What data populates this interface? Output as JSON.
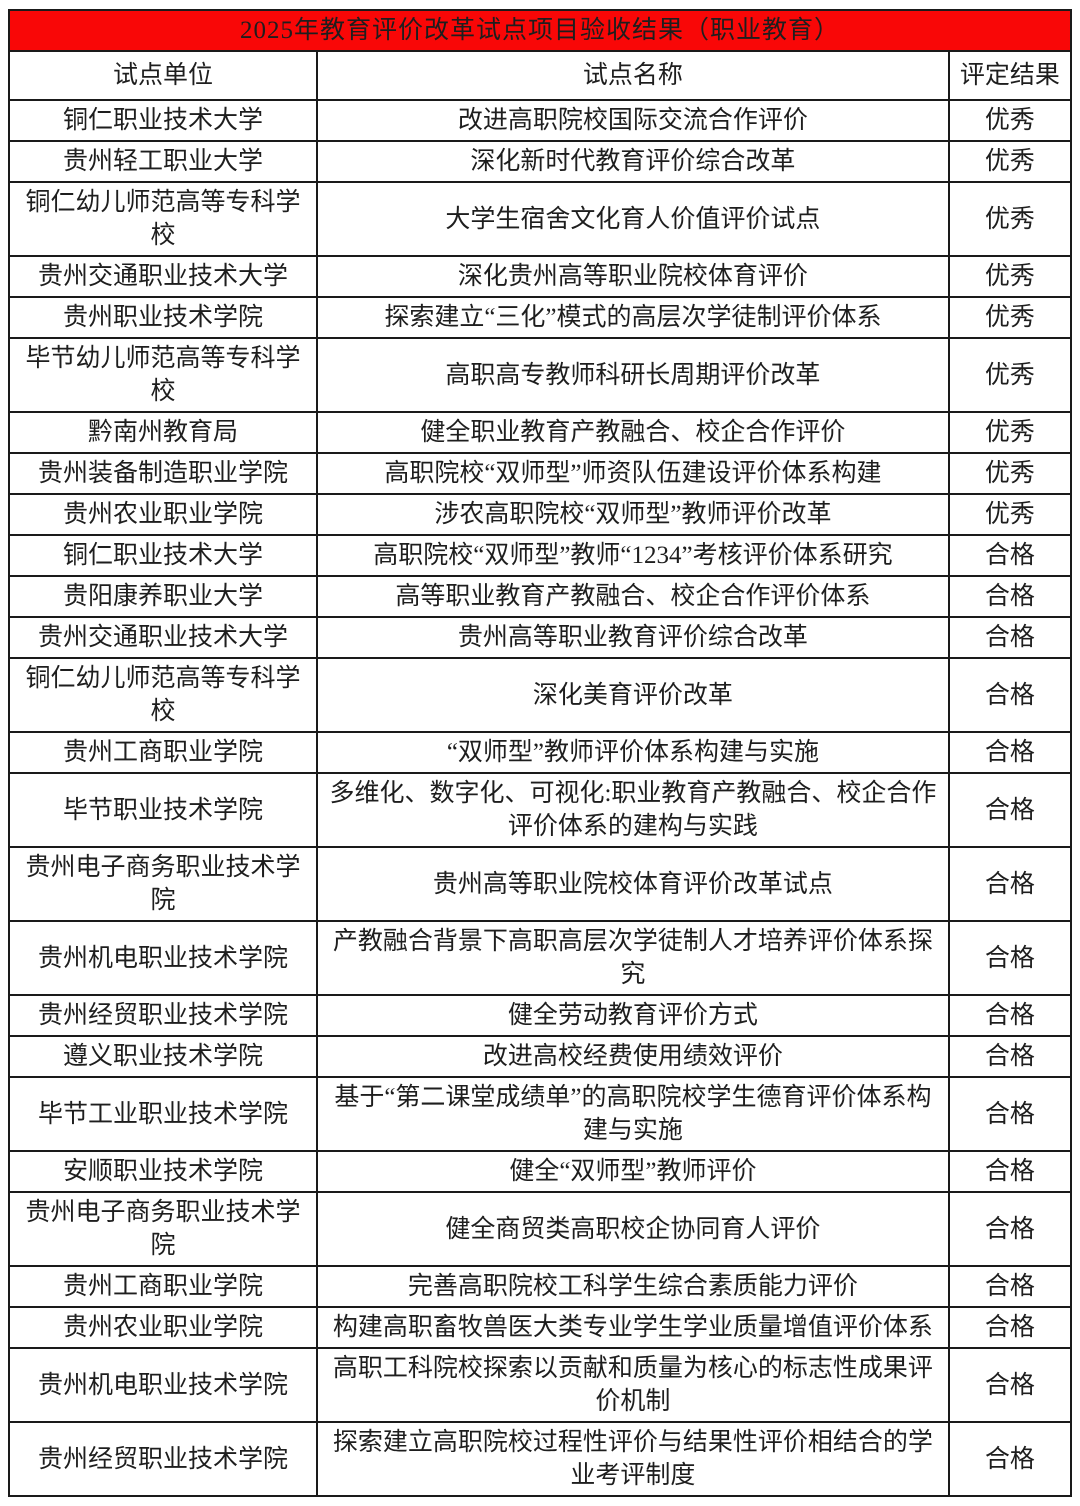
{
  "title": "2025年教育评价改革试点项目验收结果（职业教育）",
  "columns": [
    "试点单位",
    "试点名称",
    "评定结果"
  ],
  "colors": {
    "title_bg": "#f90707",
    "title_text": "#ffffff",
    "border": "#1a1a1a",
    "body_text": "#1e1e1e"
  },
  "rows": [
    {
      "unit": "铜仁职业技术大学",
      "project": "改进高职院校国际交流合作评价",
      "result": "优秀"
    },
    {
      "unit": "贵州轻工职业大学",
      "project": "深化新时代教育评价综合改革",
      "result": "优秀"
    },
    {
      "unit": "铜仁幼儿师范高等专科学校",
      "project": "大学生宿舍文化育人价值评价试点",
      "result": "优秀"
    },
    {
      "unit": "贵州交通职业技术大学",
      "project": "深化贵州高等职业院校体育评价",
      "result": "优秀"
    },
    {
      "unit": "贵州职业技术学院",
      "project": "探索建立“三化”模式的高层次学徒制评价体系",
      "result": "优秀"
    },
    {
      "unit": "毕节幼儿师范高等专科学校",
      "project": "高职高专教师科研长周期评价改革",
      "result": "优秀"
    },
    {
      "unit": "黔南州教育局",
      "project": "健全职业教育产教融合、校企合作评价",
      "result": "优秀"
    },
    {
      "unit": "贵州装备制造职业学院",
      "project": "高职院校“双师型”师资队伍建设评价体系构建",
      "result": "优秀"
    },
    {
      "unit": "贵州农业职业学院",
      "project": "涉农高职院校“双师型”教师评价改革",
      "result": "优秀"
    },
    {
      "unit": "铜仁职业技术大学",
      "project": "高职院校“双师型”教师“1234”考核评价体系研究",
      "result": "合格"
    },
    {
      "unit": "贵阳康养职业大学",
      "project": "高等职业教育产教融合、校企合作评价体系",
      "result": "合格"
    },
    {
      "unit": "贵州交通职业技术大学",
      "project": "贵州高等职业教育评价综合改革",
      "result": "合格"
    },
    {
      "unit": "铜仁幼儿师范高等专科学校",
      "project": "深化美育评价改革",
      "result": "合格"
    },
    {
      "unit": "贵州工商职业学院",
      "project": "“双师型”教师评价体系构建与实施",
      "result": "合格"
    },
    {
      "unit": "毕节职业技术学院",
      "project": "多维化、数字化、可视化:职业教育产教融合、校企合作评价体系的建构与实践",
      "result": "合格"
    },
    {
      "unit": "贵州电子商务职业技术学院",
      "project": "贵州高等职业院校体育评价改革试点",
      "result": "合格"
    },
    {
      "unit": "贵州机电职业技术学院",
      "project": "产教融合背景下高职高层次学徒制人才培养评价体系探究",
      "result": "合格"
    },
    {
      "unit": "贵州经贸职业技术学院",
      "project": "健全劳动教育评价方式",
      "result": "合格"
    },
    {
      "unit": "遵义职业技术学院",
      "project": "改进高校经费使用绩效评价",
      "result": "合格"
    },
    {
      "unit": "毕节工业职业技术学院",
      "project": "基于“第二课堂成绩单”的高职院校学生德育评价体系构建与实施",
      "result": "合格"
    },
    {
      "unit": "安顺职业技术学院",
      "project": "健全“双师型”教师评价",
      "result": "合格"
    },
    {
      "unit": "贵州电子商务职业技术学院",
      "project": "健全商贸类高职校企协同育人评价",
      "result": "合格"
    },
    {
      "unit": "贵州工商职业学院",
      "project": "完善高职院校工科学生综合素质能力评价",
      "result": "合格"
    },
    {
      "unit": "贵州农业职业学院",
      "project": "构建高职畜牧兽医大类专业学生学业质量增值评价体系",
      "result": "合格"
    },
    {
      "unit": "贵州机电职业技术学院",
      "project": "高职工科院校探索以贡献和质量为核心的标志性成果评价机制",
      "result": "合格"
    },
    {
      "unit": "贵州经贸职业技术学院",
      "project": "探索建立高职院校过程性评价与结果性评价相结合的学业考评制度",
      "result": "合格"
    }
  ]
}
